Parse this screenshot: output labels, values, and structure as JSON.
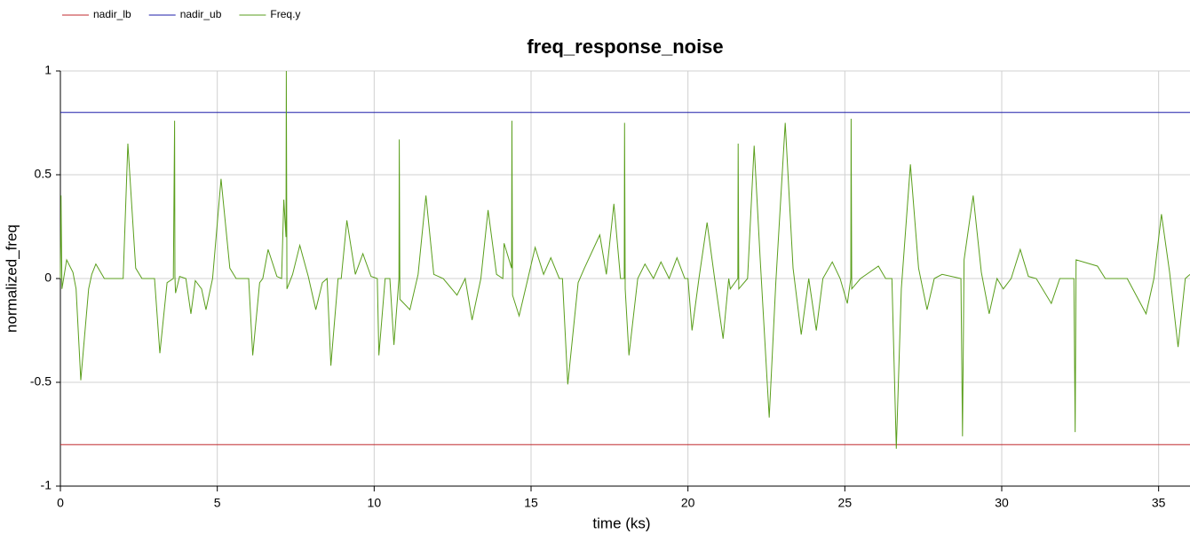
{
  "chart_data": {
    "type": "line",
    "title": "freq_response_noise",
    "x_label": "time (ks)",
    "y_label": "normalized_freq",
    "xlim": [
      0,
      36
    ],
    "ylim": [
      -1,
      1
    ],
    "xticks": [
      0,
      5,
      10,
      15,
      20,
      25,
      30,
      35
    ],
    "yticks": [
      -1,
      -0.5,
      0,
      0.5,
      1
    ],
    "grid": true,
    "legend": "top-left",
    "series": [
      {
        "name": "nadir_lb",
        "color": "#c0282d",
        "x": [
          0,
          36
        ],
        "values": [
          -0.8,
          -0.8
        ]
      },
      {
        "name": "nadir_ub",
        "color": "#1c1ca8",
        "x": [
          0,
          36
        ],
        "values": [
          0.8,
          0.8
        ]
      },
      {
        "name": "Freq.y",
        "color": "#5a9e1c",
        "x": [
          0,
          0.02,
          0.05,
          0.2,
          0.4,
          0.5,
          0.65,
          0.9,
          1.0,
          1.13,
          1.4,
          2.0,
          2.15,
          2.4,
          2.6,
          3.0,
          3.17,
          3.4,
          3.6,
          3.64,
          3.65,
          3.67,
          3.8,
          4.0,
          4.16,
          4.3,
          4.5,
          4.64,
          4.85,
          5.12,
          5.4,
          5.6,
          6.0,
          6.13,
          6.35,
          6.45,
          6.62,
          6.9,
          7.05,
          7.12,
          7.19,
          7.2,
          7.22,
          7.4,
          7.63,
          7.9,
          8.14,
          8.35,
          8.5,
          8.62,
          8.85,
          8.95,
          9.13,
          9.4,
          9.64,
          9.9,
          10.1,
          10.15,
          10.35,
          10.5,
          10.63,
          10.79,
          10.8,
          10.82,
          11.14,
          11.4,
          11.65,
          11.9,
          12.2,
          12.64,
          12.9,
          13.12,
          13.4,
          13.63,
          13.9,
          14.1,
          14.14,
          14.38,
          14.39,
          14.41,
          14.62,
          14.9,
          15.13,
          15.4,
          15.63,
          15.9,
          16.0,
          16.17,
          16.5,
          16.7,
          17.19,
          17.4,
          17.64,
          17.85,
          17.97,
          17.98,
          18.0,
          18.12,
          18.4,
          18.63,
          18.9,
          19.14,
          19.4,
          19.65,
          19.9,
          20.0,
          20.13,
          20.35,
          20.61,
          20.85,
          21.12,
          21.3,
          21.35,
          21.59,
          21.6,
          21.62,
          21.9,
          22.11,
          22.3,
          22.59,
          22.8,
          23.1,
          23.35,
          23.61,
          23.85,
          24.09,
          24.3,
          24.6,
          24.85,
          25.08,
          25.19,
          25.2,
          25.22,
          25.5,
          26.07,
          26.3,
          26.5,
          26.64,
          26.8,
          27.09,
          27.35,
          27.62,
          27.85,
          28.1,
          28.7,
          28.75,
          28.8,
          29.09,
          29.35,
          29.6,
          29.85,
          30.05,
          30.3,
          30.59,
          30.85,
          31.1,
          31.58,
          31.85,
          32.3,
          32.34,
          32.37,
          33.05,
          33.3,
          34.0,
          34.6,
          34.85,
          35.09,
          35.35,
          35.62,
          35.85,
          36
        ],
        "values": [
          0,
          0.4,
          -0.05,
          0.09,
          0.03,
          -0.05,
          -0.49,
          -0.05,
          0.02,
          0.07,
          0,
          0,
          0.65,
          0.05,
          0,
          0,
          -0.36,
          -0.02,
          0,
          0.76,
          0.01,
          -0.07,
          0.01,
          0,
          -0.17,
          -0.01,
          -0.05,
          -0.15,
          0,
          0.48,
          0.05,
          0,
          0,
          -0.37,
          -0.02,
          0,
          0.14,
          0.01,
          0,
          0.38,
          0.2,
          1.0,
          -0.05,
          0.02,
          0.16,
          0.01,
          -0.15,
          -0.02,
          0,
          -0.42,
          0,
          0,
          0.28,
          0.02,
          0.12,
          0.01,
          0,
          -0.37,
          0,
          0,
          -0.32,
          0,
          0.67,
          -0.1,
          -0.15,
          0.02,
          0.4,
          0.02,
          0,
          -0.08,
          0,
          -0.2,
          0,
          0.33,
          0.02,
          0,
          0.17,
          0.05,
          0.76,
          -0.08,
          -0.18,
          0,
          0.15,
          0.02,
          0.1,
          0,
          0,
          -0.51,
          -0.02,
          0.05,
          0.21,
          0.02,
          0.36,
          0,
          0,
          0.75,
          -0.05,
          -0.37,
          0,
          0.07,
          0,
          0.08,
          0,
          0.1,
          0,
          0,
          -0.25,
          0,
          0.27,
          0,
          -0.29,
          0,
          -0.05,
          0,
          0.65,
          -0.05,
          0,
          0.64,
          0.1,
          -0.67,
          -0.02,
          0.75,
          0.05,
          -0.27,
          0,
          -0.25,
          0,
          0.08,
          0,
          -0.12,
          0,
          0.77,
          -0.05,
          0,
          0.06,
          0,
          0,
          -0.82,
          -0.05,
          0.55,
          0.05,
          -0.15,
          0,
          0.02,
          0,
          -0.76,
          0.09,
          0.4,
          0.03,
          -0.17,
          0,
          -0.05,
          0,
          0.14,
          0.01,
          0,
          -0.12,
          0,
          0,
          -0.74,
          0.09,
          0.06,
          0,
          0,
          -0.17,
          0,
          0.31,
          0.03,
          -0.33,
          0,
          0.02
        ]
      }
    ]
  }
}
